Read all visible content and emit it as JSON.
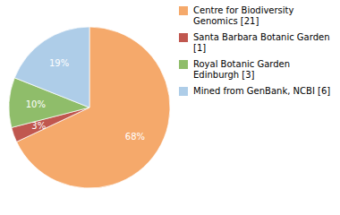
{
  "chart_data": {
    "type": "pie",
    "categories": [
      "Centre for Biodiversity\nGenomics [21]",
      "Santa Barbara Botanic Garden [1]",
      "Royal Botanic Garden Edinburgh [3]",
      "Mined from GenBank, NCBI [6]"
    ],
    "values": [
      68,
      3,
      10,
      19
    ],
    "value_labels": [
      "68%",
      "3%",
      "10%",
      "19%"
    ],
    "colors": [
      "#F5A96B",
      "#C0574F",
      "#8FBD6A",
      "#AECDE8"
    ],
    "data_labels": true,
    "legend": "right"
  }
}
